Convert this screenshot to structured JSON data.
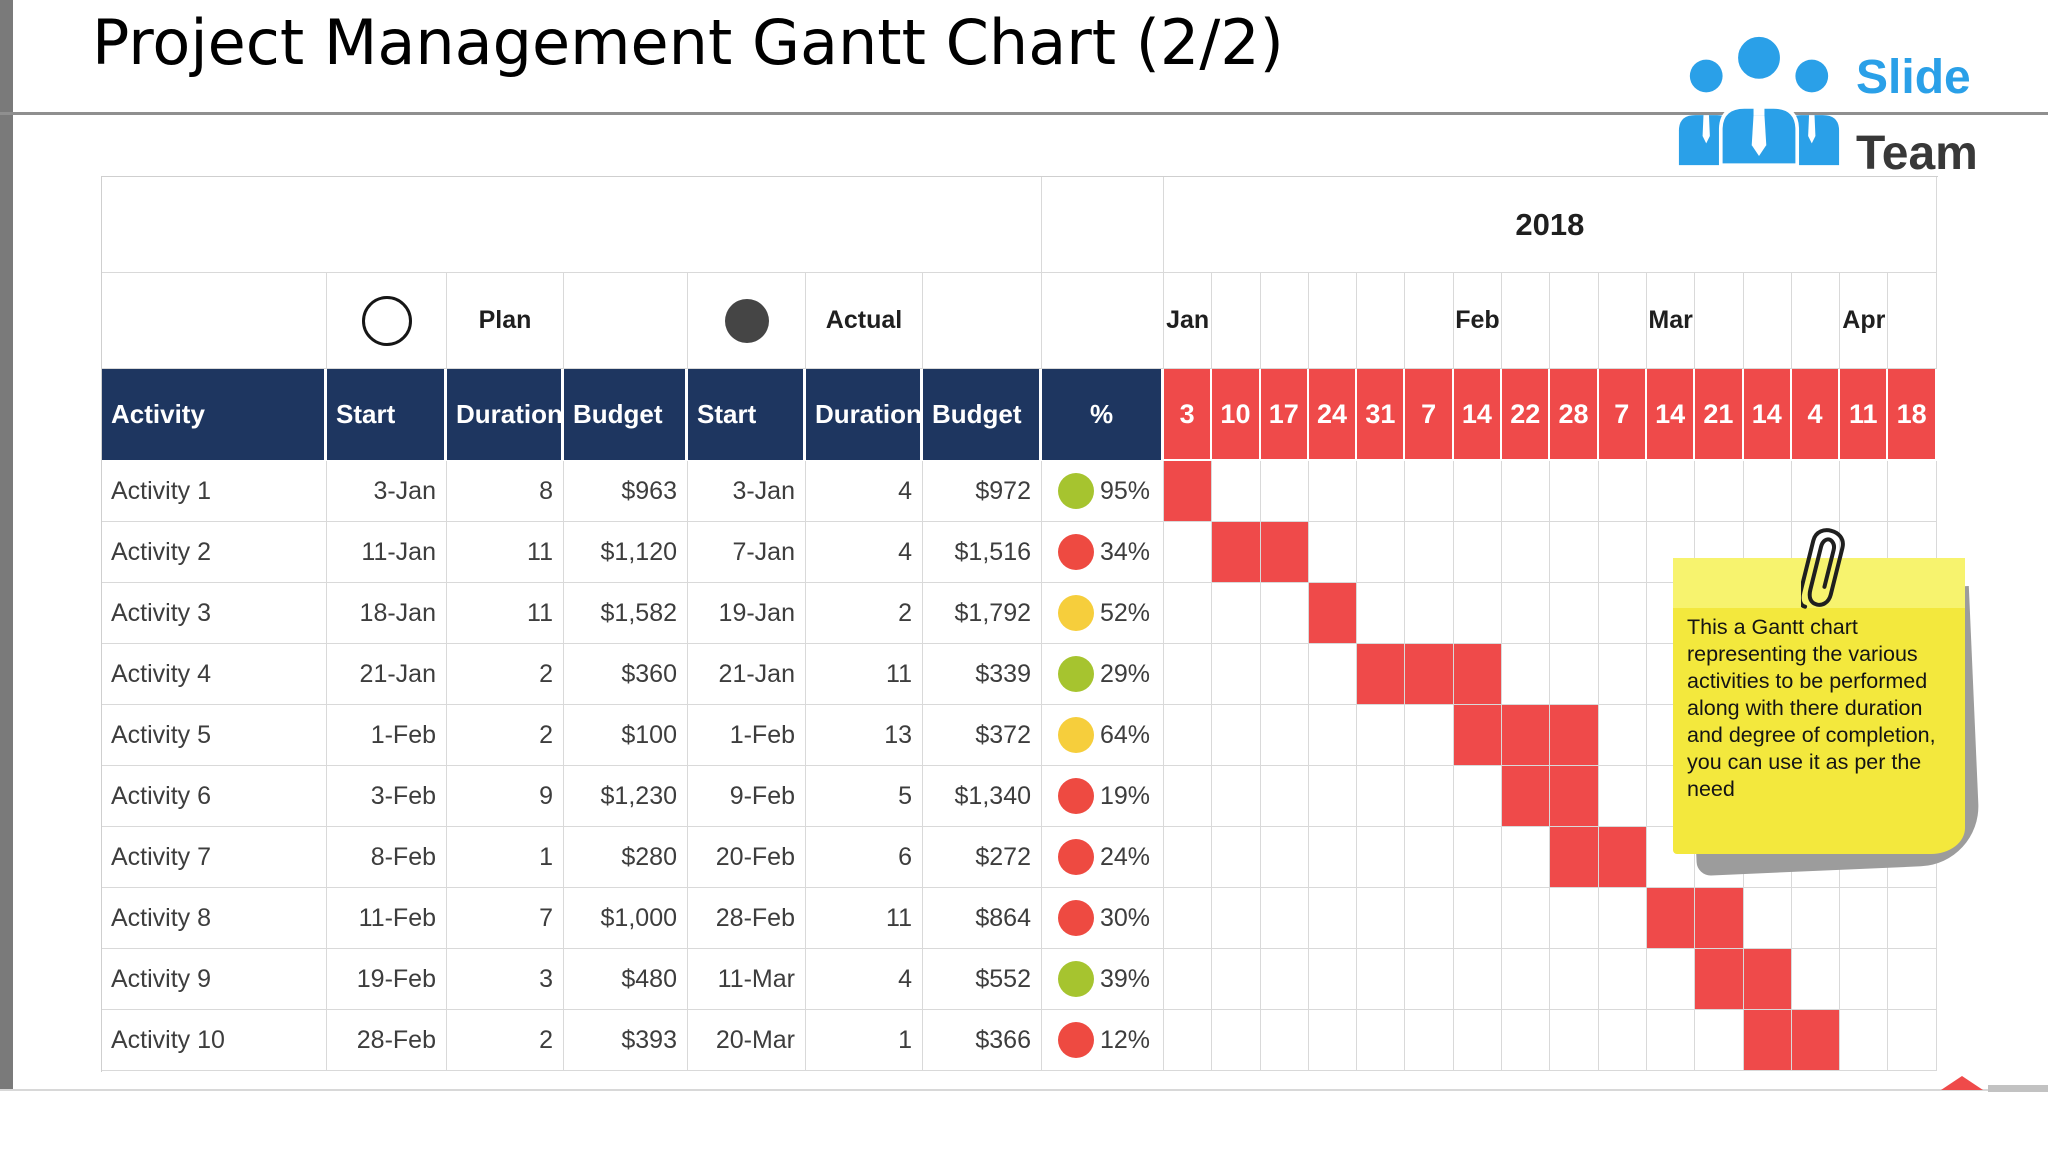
{
  "slide": {
    "title": "Project Management Gantt Chart (2/2)"
  },
  "logo": {
    "line1": "Slide",
    "line2": "Team",
    "icon": "three-person-team-icon",
    "blue": "#2AA0E8",
    "dark": "#383838"
  },
  "table": {
    "year_header": "2018",
    "legend": {
      "plan_label": "Plan",
      "plan_marker": "open-circle",
      "actual_label": "Actual",
      "actual_marker": "filled-circle"
    },
    "column_headers": [
      "Activity",
      "Start",
      "Duration",
      "Budget",
      "Start",
      "Duration",
      "Budget",
      "%"
    ],
    "months": [
      {
        "label": "Jan",
        "col": 0
      },
      {
        "label": "Feb",
        "col": 6
      },
      {
        "label": "Mar",
        "col": 10
      },
      {
        "label": "Apr",
        "col": 14
      }
    ],
    "date_headers": [
      "3",
      "10",
      "17",
      "24",
      "31",
      "7",
      "14",
      "22",
      "28",
      "7",
      "14",
      "21",
      "14",
      "4",
      "11",
      "18"
    ],
    "rows": [
      {
        "activity": "Activity 1",
        "plan_start": "3-Jan",
        "plan_duration": "8",
        "plan_budget": "$963",
        "actual_start": "3-Jan",
        "actual_duration": "4",
        "actual_budget": "$972",
        "percent": "95%",
        "dot": "green",
        "bars": [
          0
        ]
      },
      {
        "activity": "Activity 2",
        "plan_start": "11-Jan",
        "plan_duration": "11",
        "plan_budget": "$1,120",
        "actual_start": "7-Jan",
        "actual_duration": "4",
        "actual_budget": "$1,516",
        "percent": "34%",
        "dot": "red",
        "bars": [
          1,
          2
        ]
      },
      {
        "activity": "Activity 3",
        "plan_start": "18-Jan",
        "plan_duration": "11",
        "plan_budget": "$1,582",
        "actual_start": "19-Jan",
        "actual_duration": "2",
        "actual_budget": "$1,792",
        "percent": "52%",
        "dot": "yellow",
        "bars": [
          3
        ]
      },
      {
        "activity": "Activity 4",
        "plan_start": "21-Jan",
        "plan_duration": "2",
        "plan_budget": "$360",
        "actual_start": "21-Jan",
        "actual_duration": "11",
        "actual_budget": "$339",
        "percent": "29%",
        "dot": "green",
        "bars": [
          4,
          5,
          6
        ]
      },
      {
        "activity": "Activity 5",
        "plan_start": "1-Feb",
        "plan_duration": "2",
        "plan_budget": "$100",
        "actual_start": "1-Feb",
        "actual_duration": "13",
        "actual_budget": "$372",
        "percent": "64%",
        "dot": "yellow",
        "bars": [
          6,
          7,
          8
        ]
      },
      {
        "activity": "Activity 6",
        "plan_start": "3-Feb",
        "plan_duration": "9",
        "plan_budget": "$1,230",
        "actual_start": "9-Feb",
        "actual_duration": "5",
        "actual_budget": "$1,340",
        "percent": "19%",
        "dot": "red",
        "bars": [
          7,
          8
        ]
      },
      {
        "activity": "Activity 7",
        "plan_start": "8-Feb",
        "plan_duration": "1",
        "plan_budget": "$280",
        "actual_start": "20-Feb",
        "actual_duration": "6",
        "actual_budget": "$272",
        "percent": "24%",
        "dot": "red",
        "bars": [
          8,
          9
        ]
      },
      {
        "activity": "Activity 8",
        "plan_start": "11-Feb",
        "plan_duration": "7",
        "plan_budget": "$1,000",
        "actual_start": "28-Feb",
        "actual_duration": "11",
        "actual_budget": "$864",
        "percent": "30%",
        "dot": "red",
        "bars": [
          10,
          11
        ]
      },
      {
        "activity": "Activity 9",
        "plan_start": "19-Feb",
        "plan_duration": "3",
        "plan_budget": "$480",
        "actual_start": "11-Mar",
        "actual_duration": "4",
        "actual_budget": "$552",
        "percent": "39%",
        "dot": "green",
        "bars": [
          11,
          12
        ]
      },
      {
        "activity": "Activity 10",
        "plan_start": "28-Feb",
        "plan_duration": "2",
        "plan_budget": "$393",
        "actual_start": "20-Mar",
        "actual_duration": "1",
        "actual_budget": "$366",
        "percent": "12%",
        "dot": "red",
        "bars": [
          12,
          13
        ]
      }
    ]
  },
  "note": {
    "lines": [
      "This a Gantt chart",
      "representing the various",
      "activities to be performed",
      "along with there duration",
      "and degree of completion,",
      "you can use it as per the",
      "need"
    ]
  },
  "chart_data": {
    "type": "gantt",
    "title": "Project Management Gantt Chart (2/2)",
    "year": "2018",
    "legend": [
      "Plan",
      "Actual"
    ],
    "month_groups": [
      {
        "month": "Jan",
        "weeks": [
          3,
          10,
          17,
          24,
          31
        ]
      },
      {
        "month": "Feb",
        "weeks": [
          7,
          14,
          22,
          28
        ]
      },
      {
        "month": "Mar",
        "weeks": [
          7,
          14,
          21,
          14
        ]
      },
      {
        "month": "Apr",
        "weeks": [
          4,
          11,
          18
        ]
      }
    ],
    "bar_color": "#EF4A4A",
    "activities": [
      {
        "name": "Activity 1",
        "plan": {
          "start": "3-Jan",
          "duration": 8,
          "budget": 963
        },
        "actual": {
          "start": "3-Jan",
          "duration": 4,
          "budget": 972
        },
        "percent_complete": 95,
        "status_color": "green",
        "bar_col_indexes_0based": [
          0
        ]
      },
      {
        "name": "Activity 2",
        "plan": {
          "start": "11-Jan",
          "duration": 11,
          "budget": 1120
        },
        "actual": {
          "start": "7-Jan",
          "duration": 4,
          "budget": 1516
        },
        "percent_complete": 34,
        "status_color": "red",
        "bar_col_indexes_0based": [
          1,
          2
        ]
      },
      {
        "name": "Activity 3",
        "plan": {
          "start": "18-Jan",
          "duration": 11,
          "budget": 1582
        },
        "actual": {
          "start": "19-Jan",
          "duration": 2,
          "budget": 1792
        },
        "percent_complete": 52,
        "status_color": "yellow",
        "bar_col_indexes_0based": [
          3
        ]
      },
      {
        "name": "Activity 4",
        "plan": {
          "start": "21-Jan",
          "duration": 2,
          "budget": 360
        },
        "actual": {
          "start": "21-Jan",
          "duration": 11,
          "budget": 339
        },
        "percent_complete": 29,
        "status_color": "green",
        "bar_col_indexes_0based": [
          4,
          5,
          6
        ]
      },
      {
        "name": "Activity 5",
        "plan": {
          "start": "1-Feb",
          "duration": 2,
          "budget": 100
        },
        "actual": {
          "start": "1-Feb",
          "duration": 13,
          "budget": 372
        },
        "percent_complete": 64,
        "status_color": "yellow",
        "bar_col_indexes_0based": [
          6,
          7,
          8
        ]
      },
      {
        "name": "Activity 6",
        "plan": {
          "start": "3-Feb",
          "duration": 9,
          "budget": 1230
        },
        "actual": {
          "start": "9-Feb",
          "duration": 5,
          "budget": 1340
        },
        "percent_complete": 19,
        "status_color": "red",
        "bar_col_indexes_0based": [
          7,
          8
        ]
      },
      {
        "name": "Activity 7",
        "plan": {
          "start": "8-Feb",
          "duration": 1,
          "budget": 280
        },
        "actual": {
          "start": "20-Feb",
          "duration": 6,
          "budget": 272
        },
        "percent_complete": 24,
        "status_color": "red",
        "bar_col_indexes_0based": [
          8,
          9
        ]
      },
      {
        "name": "Activity 8",
        "plan": {
          "start": "11-Feb",
          "duration": 7,
          "budget": 1000
        },
        "actual": {
          "start": "28-Feb",
          "duration": 11,
          "budget": 864
        },
        "percent_complete": 30,
        "status_color": "red",
        "bar_col_indexes_0based": [
          10,
          11
        ]
      },
      {
        "name": "Activity 9",
        "plan": {
          "start": "19-Feb",
          "duration": 3,
          "budget": 480
        },
        "actual": {
          "start": "11-Mar",
          "duration": 4,
          "budget": 552
        },
        "percent_complete": 39,
        "status_color": "green",
        "bar_col_indexes_0based": [
          11,
          12
        ]
      },
      {
        "name": "Activity 10",
        "plan": {
          "start": "28-Feb",
          "duration": 2,
          "budget": 393
        },
        "actual": {
          "start": "20-Mar",
          "duration": 1,
          "budget": 366
        },
        "percent_complete": 12,
        "status_color": "red",
        "bar_col_indexes_0based": [
          12,
          13
        ]
      }
    ]
  },
  "colors": {
    "header_navy": "#1E3660",
    "bar_red": "#EF4A4A",
    "status_green": "#A6C42F",
    "status_yellow": "#F6CE3C",
    "status_red": "#EE4A41",
    "note_yellow": "#F3E83D",
    "note_band": "#F7F36E",
    "logo_blue": "#2AA0E8"
  }
}
